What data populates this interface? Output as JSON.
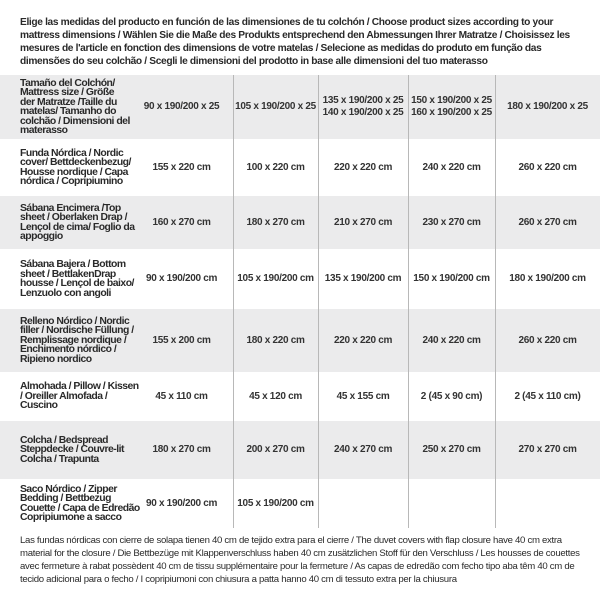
{
  "intro": "Elige las medidas del producto en función de las dimensiones de tu colchón / Choose product sizes according to your mattress dimensions / Wählen Sie die Maße des Produkts entsprechend den Abmessungen Ihrer Matratze / Choisissez les mesures de l'article en fonction des dimensions de votre matelas / Selecione as medidas do produto em função das dimensões do seu colchão / Scegli le dimensioni del prodotto in base alle dimensioni del tuo materasso",
  "table": {
    "rows": [
      {
        "label": "Tamaño del Colchón/ Mattress size / Größe der Matratze /Taille du matelas/ Tamanho do colchão / Dimensioni del materasso",
        "cells": [
          "90 x 190/200 x 25",
          "105 x 190/200 x 25",
          "135 x 190/200 x 25\n140 x 190/200 x 25",
          "150 x 190/200 x 25\n160 x 190/200 x 25",
          "180 x 190/200 x 25"
        ]
      },
      {
        "label": "Funda Nórdica /  Nordic cover/ Bettdeckenbezug/ Housse nordique  / Capa nórdica / Copripiumino",
        "cells": [
          "155 x 220 cm",
          "100 x 220 cm",
          "220 x 220 cm",
          "240 x 220 cm",
          "260 x 220 cm"
        ]
      },
      {
        "label": "Sábana Encimera /Top sheet / Oberlaken Drap / Lençol de cima/ Foglio da appoggio",
        "cells": [
          "160 x 270 cm",
          "180 x 270 cm",
          "210 x 270 cm",
          "230 x 270 cm",
          "260 x 270 cm"
        ]
      },
      {
        "label": "Sábana Bajera / Bottom sheet / BettlakenDrap housse / Lençol de baixo/ Lenzuolo con angoli",
        "cells": [
          "90 x 190/200 cm",
          "105 x 190/200 cm",
          "135 x 190/200 cm",
          "150 x 190/200 cm",
          "180 x 190/200 cm"
        ]
      },
      {
        "label": "Relleno Nórdico / Nordic filler / Nordische Füllung / Remplissage nordique / Enchimento nórdico / Ripieno nordico",
        "cells": [
          "155 x 200 cm",
          "180 x 220 cm",
          "220 x 220 cm",
          "240 x 220 cm",
          "260 x 220 cm"
        ]
      },
      {
        "label": "Almohada  / Pillow / Kissen / Oreiller Almofada / Cuscino",
        "cells": [
          "45 x 110 cm",
          "45 x 120 cm",
          "45 x 155 cm",
          "2 (45 x 90 cm)",
          "2 (45 x 110 cm)"
        ]
      },
      {
        "label": "Colcha / Bedspread Steppdecke / Couvre-lit Colcha / Trapunta",
        "cells": [
          "180 x 270 cm",
          "200 x 270 cm",
          "240 x 270 cm",
          "250 x 270 cm",
          "270 x 270 cm"
        ]
      },
      {
        "label": "Saco Nórdico / Zipper Bedding / Bettbezug Couette  / Capa de Edredão Copripiumone a sacco",
        "cells": [
          "90 x 190/200 cm",
          "105 x 190/200 cm",
          "",
          "",
          ""
        ]
      }
    ]
  },
  "footer": "Las fundas nórdicas con cierre de solapa tienen 40 cm de tejido extra para el cierre  / The duvet covers with flap closure have 40 cm extra material for the closure / Die Bettbezüge mit Klappenverschluss haben 40 cm zusätzlichen Stoff für den Verschluss / Les housses de couettes avec fermeture à rabat possèdent 40 cm de tissu supplémentaire pour la fermeture / As capas de edredão com fecho tipo aba têm 40 cm de tecido adicional para o fecho / I copripiumoni con chiusura a patta hanno 40 cm di tessuto extra per la chiusura",
  "colors": {
    "row_gray": "#ebebec",
    "text": "#2a2a2a",
    "divider": "#b8b8b8"
  }
}
